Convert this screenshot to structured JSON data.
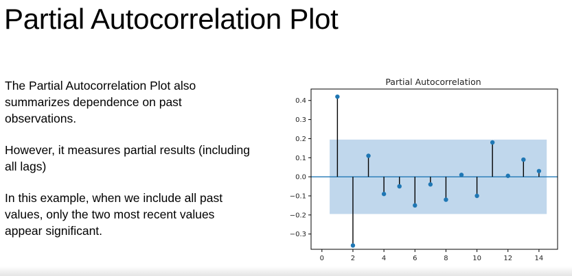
{
  "slide": {
    "title": "Partial Autocorrelation Plot",
    "paragraphs": [
      "The Partial Autocorrelation Plot also summarizes dependence on past observations.",
      "However, it measures partial results (including all lags)",
      "In this example, when we include all past values, only the two most recent values appear significant."
    ]
  },
  "chart_data": {
    "type": "scatter",
    "title": "Partial Autocorrelation",
    "xlabel": "",
    "ylabel": "",
    "x": [
      1,
      2,
      3,
      4,
      5,
      6,
      7,
      8,
      9,
      10,
      11,
      12,
      13,
      14
    ],
    "values": [
      0.42,
      -0.36,
      0.11,
      -0.09,
      -0.05,
      -0.15,
      -0.04,
      -0.12,
      0.01,
      -0.1,
      0.18,
      0.005,
      0.09,
      0.03
    ],
    "confidence_band": [
      -0.195,
      0.195
    ],
    "confidence_band_lags": [
      0.5,
      14.5
    ],
    "xlim": [
      -0.7,
      15.2
    ],
    "ylim": [
      -0.38,
      0.46
    ],
    "xticks": [
      0,
      2,
      4,
      6,
      8,
      10,
      12,
      14
    ],
    "yticks": [
      0.4,
      0.3,
      0.2,
      0.1,
      0.0,
      -0.1,
      -0.2,
      -0.3
    ],
    "ytick_labels": [
      "0.4",
      "0.3",
      "0.2",
      "0.1",
      "0.0",
      "−0.1",
      "−0.2",
      "−0.3"
    ],
    "grid": false,
    "colors": {
      "points": "#1f77b4",
      "stems": "#000000",
      "zero_line": "#1f77b4",
      "confidence_band": "#9ec1e2"
    }
  }
}
